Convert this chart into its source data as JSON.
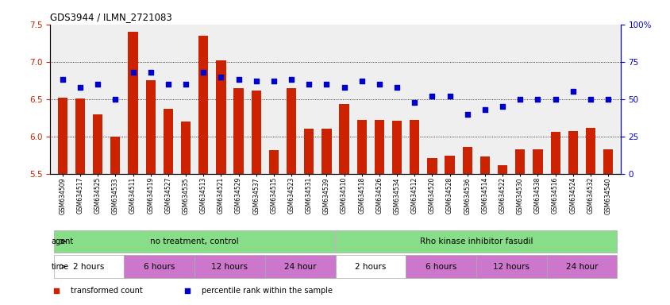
{
  "title": "GDS3944 / ILMN_2721083",
  "samples": [
    "GSM634509",
    "GSM634517",
    "GSM634525",
    "GSM634533",
    "GSM634511",
    "GSM634519",
    "GSM634527",
    "GSM634535",
    "GSM634513",
    "GSM634521",
    "GSM634529",
    "GSM634537",
    "GSM634515",
    "GSM634523",
    "GSM634531",
    "GSM634539",
    "GSM634510",
    "GSM634518",
    "GSM634526",
    "GSM634534",
    "GSM634512",
    "GSM634520",
    "GSM634528",
    "GSM634536",
    "GSM634514",
    "GSM634522",
    "GSM634530",
    "GSM634538",
    "GSM634516",
    "GSM634524",
    "GSM634532",
    "GSM634540"
  ],
  "bar_values": [
    6.52,
    6.51,
    6.3,
    6.0,
    7.4,
    6.75,
    6.37,
    6.2,
    7.35,
    7.02,
    6.65,
    6.62,
    5.82,
    6.65,
    6.1,
    6.1,
    6.43,
    6.22,
    6.22,
    6.21,
    6.22,
    5.71,
    5.74,
    5.86,
    5.73,
    5.62,
    5.83,
    5.83,
    6.06,
    6.07,
    6.11,
    5.83
  ],
  "percentile_values": [
    63,
    58,
    60,
    50,
    68,
    68,
    60,
    60,
    68,
    65,
    63,
    62,
    62,
    63,
    60,
    60,
    58,
    62,
    60,
    58,
    48,
    52,
    52,
    40,
    43,
    45,
    50,
    50,
    50,
    55,
    50,
    50
  ],
  "ylim_left": [
    5.5,
    7.5
  ],
  "ylim_right": [
    0,
    100
  ],
  "yticks_left": [
    5.5,
    6.0,
    6.5,
    7.0,
    7.5
  ],
  "yticks_right": [
    0,
    25,
    50,
    75,
    100
  ],
  "ytick_labels_right": [
    "0",
    "25",
    "50",
    "75",
    "100%"
  ],
  "bar_color": "#cc2200",
  "dot_color": "#0000cc",
  "agent_groups": [
    {
      "label": "no treatment, control",
      "start": 0,
      "end": 16
    },
    {
      "label": "Rho kinase inhibitor fasudil",
      "start": 16,
      "end": 32
    }
  ],
  "agent_color": "#88dd88",
  "time_groups": [
    {
      "label": "2 hours",
      "start": 0,
      "end": 4,
      "color": "#ffffff"
    },
    {
      "label": "6 hours",
      "start": 4,
      "end": 8,
      "color": "#cc77cc"
    },
    {
      "label": "12 hours",
      "start": 8,
      "end": 12,
      "color": "#cc77cc"
    },
    {
      "label": "24 hour",
      "start": 12,
      "end": 16,
      "color": "#cc77cc"
    },
    {
      "label": "2 hours",
      "start": 16,
      "end": 20,
      "color": "#ffffff"
    },
    {
      "label": "6 hours",
      "start": 20,
      "end": 24,
      "color": "#cc77cc"
    },
    {
      "label": "12 hours",
      "start": 24,
      "end": 28,
      "color": "#cc77cc"
    },
    {
      "label": "24 hour",
      "start": 28,
      "end": 32,
      "color": "#cc77cc"
    }
  ],
  "legend_items": [
    {
      "color": "#cc2200",
      "label": "transformed count"
    },
    {
      "color": "#0000cc",
      "label": "percentile rank within the sample"
    }
  ],
  "bg_color": "#ffffff",
  "plot_bg_color": "#efefef"
}
